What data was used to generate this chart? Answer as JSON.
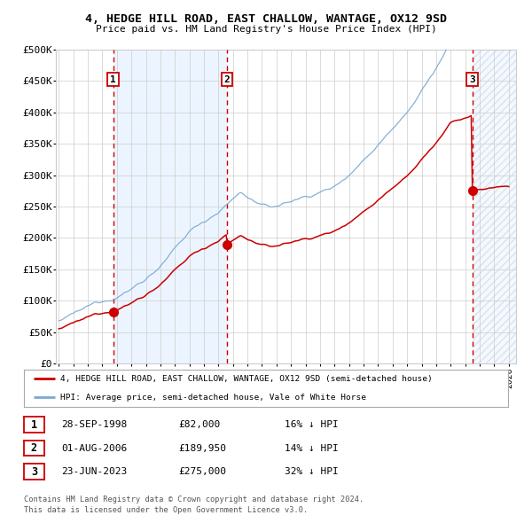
{
  "title1": "4, HEDGE HILL ROAD, EAST CHALLOW, WANTAGE, OX12 9SD",
  "title2": "Price paid vs. HM Land Registry's House Price Index (HPI)",
  "ylim": [
    0,
    500000
  ],
  "xlim_start": 1994.8,
  "xlim_end": 2026.5,
  "purchase_dates": [
    1998.745,
    2006.583,
    2023.478
  ],
  "purchase_prices": [
    82000,
    189950,
    275000
  ],
  "purchase_labels": [
    "1",
    "2",
    "3"
  ],
  "legend_line1": "4, HEDGE HILL ROAD, EAST CHALLOW, WANTAGE, OX12 9SD (semi-detached house)",
  "legend_line2": "HPI: Average price, semi-detached house, Vale of White Horse",
  "table_rows": [
    {
      "num": "1",
      "date": "28-SEP-1998",
      "price": "£82,000",
      "hpi": "16% ↓ HPI"
    },
    {
      "num": "2",
      "date": "01-AUG-2006",
      "price": "£189,950",
      "hpi": "14% ↓ HPI"
    },
    {
      "num": "3",
      "date": "23-JUN-2023",
      "price": "£275,000",
      "hpi": "32% ↓ HPI"
    }
  ],
  "footer1": "Contains HM Land Registry data © Crown copyright and database right 2024.",
  "footer2": "This data is licensed under the Open Government Licence v3.0.",
  "line_color_red": "#cc0000",
  "line_color_blue": "#7aa8d2",
  "dot_color": "#cc0000",
  "shade_color": "#ddeeff",
  "grid_color": "#cccccc",
  "bg_color": "#ffffff",
  "yticks": [
    0,
    50000,
    100000,
    150000,
    200000,
    250000,
    300000,
    350000,
    400000,
    450000,
    500000
  ],
  "ytick_labels": [
    "£0",
    "£50K",
    "£100K",
    "£150K",
    "£200K",
    "£250K",
    "£300K",
    "£350K",
    "£400K",
    "£450K",
    "£500K"
  ]
}
